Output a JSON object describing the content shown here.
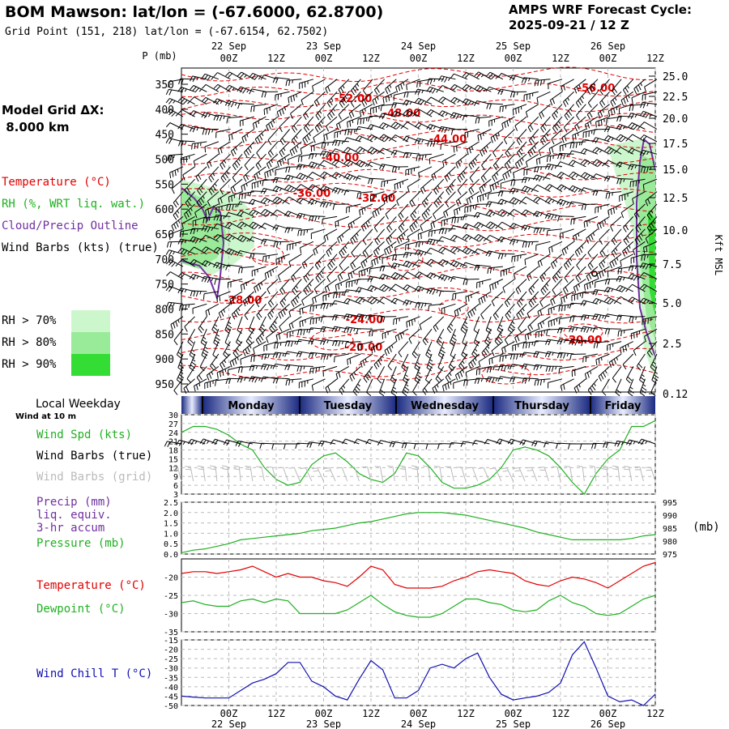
{
  "header": {
    "title": "BOM Mawson:  lat/lon = (-67.6000, 62.8700)",
    "subtitle": "Grid Point (151, 218) lat/lon = (-67.6154, 62.7502)",
    "cycle_line1": "AMPS WRF Forecast Cycle:",
    "cycle_line2": "2025-09-21 / 12  Z"
  },
  "model_grid": {
    "line1": "Model Grid ΔX:",
    "line2": " 8.000 km"
  },
  "legend": {
    "temperature": {
      "text": "Temperature (°C)",
      "color": "#e00000"
    },
    "rh": {
      "text": "RH (%, WRT liq. wat.)",
      "color": "#20b020"
    },
    "cloud": {
      "text": "Cloud/Precip Outline",
      "color": "#7030a0"
    },
    "wind": {
      "text": "Wind Barbs (kts) (true)",
      "color": "#000000"
    },
    "rh_levels": [
      {
        "text": "RH > 70%",
        "color": "#ccf7cc"
      },
      {
        "text": "RH > 80%",
        "color": "#99ea99"
      },
      {
        "text": "RH > 90%",
        "color": "#33dd33"
      }
    ]
  },
  "time_axis": {
    "top_dates": [
      "22 Sep",
      "23 Sep",
      "24 Sep",
      "25 Sep",
      "26 Sep"
    ],
    "hour_labels": [
      "00Z",
      "12Z",
      "00Z",
      "12Z",
      "00Z",
      "12Z",
      "00Z",
      "12Z",
      "00Z",
      "12Z"
    ]
  },
  "cross_section": {
    "ylabel": "P (mb)",
    "right_label": "Kft MSL",
    "pressure_ticks": [
      "350",
      "400",
      "450",
      "500",
      "550",
      "600",
      "650",
      "700",
      "750",
      "800",
      "850",
      "900",
      "950"
    ],
    "height_ticks": [
      "25.0",
      "22.5",
      "20.0",
      "17.5",
      "15.0",
      "12.5",
      "10.0",
      "7.5",
      "5.0",
      "2.5",
      "0.12"
    ],
    "contour_labels": [
      "-52.00",
      "-48.00",
      "-56.00",
      "-44.00",
      "-40.00",
      "-36.00",
      "-32.00",
      "-28.00",
      "-24.00",
      "-20.00",
      "-20.00"
    ]
  },
  "weekday_bar": {
    "label": "Local Weekday",
    "days": [
      "Monday",
      "Tuesday",
      "Wednesday",
      "Thursday",
      "Friday"
    ]
  },
  "sfc_wind": {
    "top_note": "Wind at 10 m",
    "spd_label": "Wind Spd (kts)",
    "barbs_true_label": "Wind Barbs (true)",
    "barbs_grid_label": "Wind Barbs (grid)",
    "yticks": [
      "30",
      "27",
      "24",
      "21",
      "18",
      "15",
      "12",
      "9",
      "6",
      "3"
    ]
  },
  "precip": {
    "label1": "Precip (mm)",
    "label2": "liq. equiv.",
    "label3": "3-hr accum",
    "pressure_label": "Pressure (mb)",
    "unit_right": "(mb)",
    "yticks_left": [
      "2.5",
      "2.0",
      "1.5",
      "1.0",
      "0.5",
      "0.0"
    ],
    "yticks_right": [
      "995",
      "990",
      "985",
      "980",
      "975"
    ]
  },
  "temp_panel": {
    "temp_label": "Temperature (°C)",
    "dew_label": "Dewpoint (°C)",
    "yticks": [
      "-20",
      "-25",
      "-30",
      "-35"
    ]
  },
  "chill_panel": {
    "label": "Wind Chill T (°C)",
    "yticks": [
      "-15",
      "-20",
      "-25",
      "-30",
      "-35",
      "-40",
      "-45",
      "-50"
    ]
  },
  "chart_data": [
    {
      "type": "line",
      "title": "Wind Spd (kts)",
      "x": [
        "21/12Z",
        "21/15Z",
        "21/18Z",
        "21/21Z",
        "22/00Z",
        "22/03Z",
        "22/06Z",
        "22/09Z",
        "22/12Z",
        "22/15Z",
        "22/18Z",
        "22/21Z",
        "23/00Z",
        "23/03Z",
        "23/06Z",
        "23/09Z",
        "23/12Z",
        "23/15Z",
        "23/18Z",
        "23/21Z",
        "24/00Z",
        "24/03Z",
        "24/06Z",
        "24/09Z",
        "24/12Z",
        "24/15Z",
        "24/18Z",
        "24/21Z",
        "25/00Z",
        "25/03Z",
        "25/06Z",
        "25/09Z",
        "25/12Z",
        "25/15Z",
        "25/18Z",
        "25/21Z",
        "26/00Z",
        "26/03Z",
        "26/06Z",
        "26/09Z",
        "26/12Z"
      ],
      "series": [
        {
          "name": "Wind Spd (kts)",
          "color": "#20b020",
          "values": [
            24,
            26,
            26,
            25,
            23,
            20,
            18,
            12,
            8,
            6,
            7,
            13,
            16,
            17,
            14,
            10,
            8,
            7,
            10,
            17,
            16,
            12,
            7,
            5,
            5,
            6,
            8,
            12,
            18,
            19,
            18,
            16,
            12,
            7,
            3,
            10,
            15,
            18,
            26,
            26,
            28
          ]
        }
      ],
      "ylim": [
        3,
        30
      ]
    },
    {
      "type": "line",
      "title": "Precip (mm)",
      "series": [
        {
          "name": "Pressure (mb)",
          "color": "#20b020",
          "values": [
            975.5,
            976.5,
            977,
            978,
            979,
            980.5,
            981,
            981.5,
            982,
            982.5,
            983,
            984,
            984.5,
            985,
            986,
            987,
            987.5,
            988.5,
            989.5,
            990.5,
            991,
            991,
            991,
            990.5,
            990,
            989,
            988,
            987,
            986,
            985,
            983.5,
            982.5,
            981.5,
            980.5,
            980.5,
            980.5,
            980.5,
            980.5,
            981,
            982,
            982.5
          ]
        },
        {
          "name": "Precip (mm)",
          "color": "#7030a0",
          "values": [
            0,
            0,
            0,
            0,
            0,
            0,
            0,
            0,
            0,
            0,
            0,
            0,
            0,
            0,
            0,
            0,
            0,
            0,
            0,
            0,
            0,
            0,
            0,
            0,
            0,
            0,
            0,
            0,
            0,
            0,
            0,
            0,
            0,
            0,
            0,
            0,
            0,
            0,
            0,
            0,
            0
          ]
        }
      ],
      "ylim": [
        0,
        2.5
      ],
      "ylim_right": [
        975,
        995
      ]
    },
    {
      "type": "line",
      "title": "Temperature (°C)",
      "series": [
        {
          "name": "Temperature (°C)",
          "color": "#e00000",
          "values": [
            -19,
            -18.5,
            -18.5,
            -19,
            -18.5,
            -18,
            -17,
            -18.5,
            -20,
            -19,
            -20,
            -20,
            -21,
            -21.5,
            -22.5,
            -20,
            -17,
            -18,
            -22,
            -23,
            -23,
            -23,
            -22.5,
            -21,
            -20,
            -18.5,
            -18,
            -18.5,
            -19,
            -21,
            -22,
            -22.5,
            -21,
            -20,
            -20.5,
            -21.5,
            -23,
            -21,
            -19,
            -17,
            -16
          ]
        },
        {
          "name": "Dewpoint (°C)",
          "color": "#20b020",
          "values": [
            -27,
            -26.5,
            -27.5,
            -28,
            -28,
            -26.5,
            -26,
            -27,
            -26,
            -26.5,
            -30,
            -30,
            -30,
            -30,
            -29,
            -27,
            -25,
            -27.5,
            -29.5,
            -30.5,
            -31,
            -31,
            -30,
            -28,
            -26,
            -26,
            -27,
            -27.5,
            -29,
            -29.5,
            -29,
            -26.5,
            -25,
            -27,
            -28,
            -30,
            -30.5,
            -30,
            -28,
            -26,
            -25
          ]
        }
      ],
      "ylim": [
        -35,
        -15
      ]
    },
    {
      "type": "line",
      "title": "Wind Chill T (°C)",
      "series": [
        {
          "name": "Wind Chill T (°C)",
          "color": "#1010b0",
          "values": [
            -45,
            -45.5,
            -46,
            -46,
            -46,
            -42,
            -38,
            -36,
            -33,
            -27,
            -27,
            -37,
            -40,
            -45,
            -47,
            -36,
            -26,
            -31,
            -46,
            -46,
            -42,
            -30,
            -28,
            -30,
            -25,
            -22,
            -35,
            -44,
            -47,
            -46,
            -45,
            -43,
            -38,
            -23,
            -16,
            -30,
            -45,
            -48,
            -47,
            -50,
            -44
          ]
        }
      ],
      "ylim": [
        -50,
        -15
      ]
    }
  ]
}
